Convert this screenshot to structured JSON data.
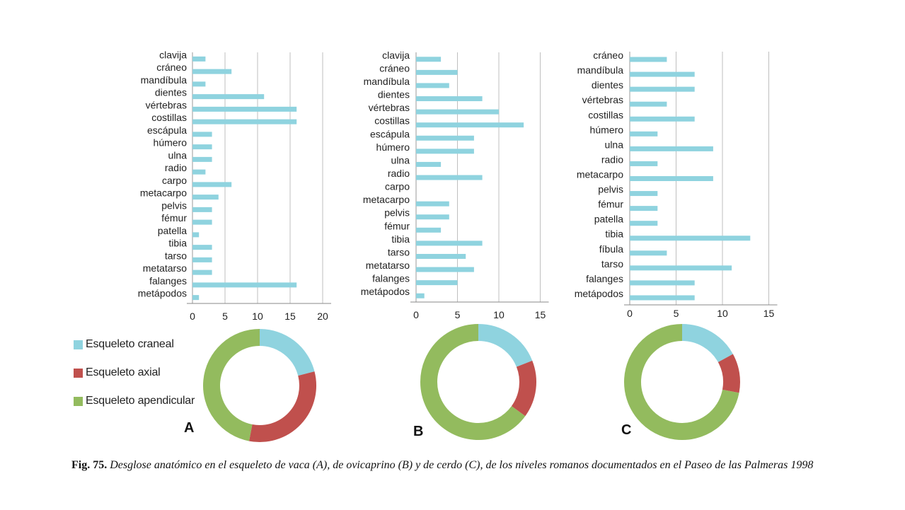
{
  "colors": {
    "bar": "#8fd3df",
    "cranial": "#8fd3df",
    "axial": "#c0504d",
    "appendicular": "#93bb5e",
    "grid": "#bfbfbf"
  },
  "legend": {
    "items": [
      {
        "label": "Esqueleto craneal",
        "color": "#8fd3df"
      },
      {
        "label": "Esqueleto axial",
        "color": "#c0504d"
      },
      {
        "label": "Esqueleto apendicular",
        "color": "#93bb5e"
      }
    ]
  },
  "caption": {
    "label": "Fig. 75.",
    "text": "Desglose anatómico en el esqueleto de vaca (A), de ovicaprino (B) y de cerdo (C), de los niveles romanos documentados en el Paseo de las Palmeras 1998"
  },
  "chart_data": [
    {
      "id": "A",
      "type": "bar",
      "orientation": "horizontal",
      "panel_label": "A",
      "categories": [
        "clavija",
        "cráneo",
        "mandíbula",
        "dientes",
        "vértebras",
        "costillas",
        "escápula",
        "húmero",
        "ulna",
        "radio",
        "carpo",
        "metacarpo",
        "pelvis",
        "fémur",
        "patella",
        "tibia",
        "tarso",
        "metatarso",
        "falanges",
        "metápodos"
      ],
      "values": [
        2,
        6,
        2,
        11,
        16,
        16,
        3,
        3,
        3,
        2,
        6,
        4,
        3,
        3,
        1,
        3,
        3,
        3,
        16,
        1
      ],
      "xlim": [
        0,
        20
      ],
      "ticks": [
        "0",
        "5",
        "10",
        "15",
        "20"
      ],
      "tick_values": [
        0,
        5,
        10,
        15,
        20
      ]
    },
    {
      "id": "B",
      "type": "bar",
      "orientation": "horizontal",
      "panel_label": "B",
      "categories": [
        "clavija",
        "cráneo",
        "mandíbula",
        "dientes",
        "vértebras",
        "costillas",
        "escápula",
        "húmero",
        "ulna",
        "radio",
        "carpo",
        "metacarpo",
        "pelvis",
        "fémur",
        "tibia",
        "tarso",
        "metatarso",
        "falanges",
        "metápodos"
      ],
      "values": [
        3,
        5,
        4,
        8,
        10,
        13,
        7,
        7,
        3,
        8,
        0,
        4,
        4,
        3,
        8,
        6,
        7,
        5,
        1
      ],
      "xlim": [
        0,
        15
      ],
      "ticks": [
        "0",
        "5",
        "10",
        "15"
      ],
      "tick_values": [
        0,
        5,
        10,
        15
      ]
    },
    {
      "id": "C",
      "type": "bar",
      "orientation": "horizontal",
      "panel_label": "C",
      "categories": [
        "cráneo",
        "mandíbula",
        "dientes",
        "vértebras",
        "costillas",
        "húmero",
        "ulna",
        "radio",
        "metacarpo",
        "pelvis",
        "fémur",
        "patella",
        "tibia",
        "fíbula",
        "tarso",
        "falanges",
        "metápodos"
      ],
      "values": [
        4,
        7,
        7,
        4,
        7,
        3,
        9,
        3,
        9,
        3,
        3,
        3,
        13,
        4,
        11,
        7,
        7
      ],
      "xlim": [
        0,
        15
      ],
      "ticks": [
        "0",
        "5",
        "10",
        "15"
      ],
      "tick_values": [
        0,
        5,
        10,
        15
      ]
    },
    {
      "id": "A-donut",
      "type": "pie",
      "donut": true,
      "labels": [
        "Esqueleto craneal",
        "Esqueleto axial",
        "Esqueleto apendicular"
      ],
      "values": [
        21,
        32,
        47
      ]
    },
    {
      "id": "B-donut",
      "type": "pie",
      "donut": true,
      "labels": [
        "Esqueleto craneal",
        "Esqueleto axial",
        "Esqueleto apendicular"
      ],
      "values": [
        19,
        16,
        65
      ]
    },
    {
      "id": "C-donut",
      "type": "pie",
      "donut": true,
      "labels": [
        "Esqueleto craneal",
        "Esqueleto axial",
        "Esqueleto apendicular"
      ],
      "values": [
        17,
        11,
        72
      ]
    }
  ]
}
